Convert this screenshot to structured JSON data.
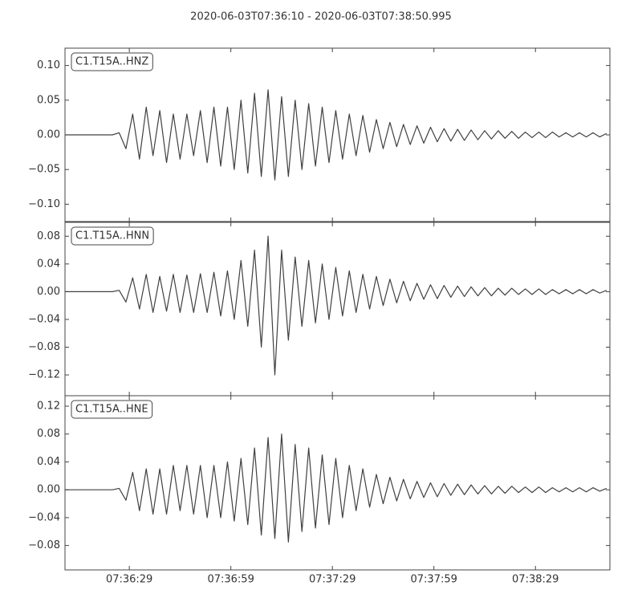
{
  "chart_data": [
    {
      "type": "line",
      "title": "2020-06-03T07:36:10  -  2020-06-03T07:38:50.995",
      "x": [
        0,
        2,
        4,
        6,
        8,
        10,
        12,
        14,
        16,
        18,
        20,
        22,
        24,
        26,
        28,
        30,
        32,
        34,
        36,
        38,
        40,
        42,
        44,
        46,
        48,
        50,
        52,
        54,
        56,
        58,
        60,
        62,
        64,
        66,
        68,
        70,
        72,
        74,
        76,
        78,
        80,
        82,
        84,
        86,
        88,
        90,
        92,
        94,
        96,
        98,
        100,
        102,
        104,
        106,
        108,
        110,
        112,
        114,
        116,
        118,
        120,
        122,
        124,
        126,
        128,
        130,
        132,
        134,
        136,
        138,
        140,
        142,
        144,
        146,
        148,
        150,
        152,
        154,
        156,
        158,
        160
      ],
      "series": [
        {
          "name": "C1.T15A..HNZ",
          "color": "#404040",
          "values": [
            0,
            0,
            0,
            0,
            0,
            0,
            0,
            0,
            0.003,
            -0.02,
            0.03,
            -0.035,
            0.04,
            -0.03,
            0.035,
            -0.04,
            0.03,
            -0.035,
            0.03,
            -0.03,
            0.035,
            -0.04,
            0.04,
            -0.045,
            0.04,
            -0.05,
            0.05,
            -0.055,
            0.06,
            -0.06,
            0.065,
            -0.065,
            0.055,
            -0.06,
            0.05,
            -0.05,
            0.045,
            -0.045,
            0.04,
            -0.04,
            0.035,
            -0.035,
            0.03,
            -0.03,
            0.028,
            -0.025,
            0.022,
            -0.02,
            0.018,
            -0.017,
            0.015,
            -0.014,
            0.013,
            -0.012,
            0.011,
            -0.01,
            0.009,
            -0.009,
            0.008,
            -0.008,
            0.007,
            -0.007,
            0.006,
            -0.006,
            0.006,
            -0.005,
            0.005,
            -0.005,
            0.004,
            -0.004,
            0.004,
            -0.004,
            0.004,
            -0.003,
            0.003,
            -0.003,
            0.003,
            -0.003,
            0.003,
            -0.003,
            0.002
          ]
        }
      ],
      "xlim": [
        0,
        160.995
      ],
      "ylim": [
        -0.125,
        0.125
      ],
      "yticks": [
        {
          "value": 0.1,
          "label": "0.10"
        },
        {
          "value": 0.05,
          "label": "0.05"
        },
        {
          "value": 0,
          "label": "0.00"
        },
        {
          "value": -0.05,
          "label": "−0.05"
        },
        {
          "value": -0.1,
          "label": "−0.10"
        }
      ]
    },
    {
      "type": "line",
      "x": [
        0,
        2,
        4,
        6,
        8,
        10,
        12,
        14,
        16,
        18,
        20,
        22,
        24,
        26,
        28,
        30,
        32,
        34,
        36,
        38,
        40,
        42,
        44,
        46,
        48,
        50,
        52,
        54,
        56,
        58,
        60,
        62,
        64,
        66,
        68,
        70,
        72,
        74,
        76,
        78,
        80,
        82,
        84,
        86,
        88,
        90,
        92,
        94,
        96,
        98,
        100,
        102,
        104,
        106,
        108,
        110,
        112,
        114,
        116,
        118,
        120,
        122,
        124,
        126,
        128,
        130,
        132,
        134,
        136,
        138,
        140,
        142,
        144,
        146,
        148,
        150,
        152,
        154,
        156,
        158,
        160
      ],
      "series": [
        {
          "name": "C1.T15A..HNN",
          "color": "#404040",
          "values": [
            0,
            0,
            0,
            0,
            0,
            0,
            0,
            0,
            0.002,
            -0.015,
            0.02,
            -0.025,
            0.025,
            -0.03,
            0.022,
            -0.028,
            0.025,
            -0.03,
            0.024,
            -0.03,
            0.026,
            -0.03,
            0.028,
            -0.035,
            0.03,
            -0.04,
            0.045,
            -0.05,
            0.06,
            -0.08,
            0.08,
            -0.12,
            0.06,
            -0.07,
            0.05,
            -0.05,
            0.045,
            -0.045,
            0.04,
            -0.04,
            0.035,
            -0.035,
            0.03,
            -0.03,
            0.025,
            -0.025,
            0.022,
            -0.02,
            0.018,
            -0.016,
            0.015,
            -0.013,
            0.012,
            -0.011,
            0.01,
            -0.01,
            0.009,
            -0.008,
            0.008,
            -0.007,
            0.007,
            -0.006,
            0.006,
            -0.006,
            0.005,
            -0.005,
            0.005,
            -0.004,
            0.004,
            -0.004,
            0.004,
            -0.004,
            0.003,
            -0.003,
            0.003,
            -0.003,
            0.003,
            -0.003,
            0.003,
            -0.002,
            0.002
          ]
        }
      ],
      "xlim": [
        0,
        160.995
      ],
      "ylim": [
        -0.15,
        0.1
      ],
      "yticks": [
        {
          "value": 0.08,
          "label": "0.08"
        },
        {
          "value": 0.04,
          "label": "0.04"
        },
        {
          "value": 0,
          "label": "0.00"
        },
        {
          "value": -0.04,
          "label": "−0.04"
        },
        {
          "value": -0.08,
          "label": "−0.08"
        },
        {
          "value": -0.12,
          "label": "−0.12"
        }
      ]
    },
    {
      "type": "line",
      "x": [
        0,
        2,
        4,
        6,
        8,
        10,
        12,
        14,
        16,
        18,
        20,
        22,
        24,
        26,
        28,
        30,
        32,
        34,
        36,
        38,
        40,
        42,
        44,
        46,
        48,
        50,
        52,
        54,
        56,
        58,
        60,
        62,
        64,
        66,
        68,
        70,
        72,
        74,
        76,
        78,
        80,
        82,
        84,
        86,
        88,
        90,
        92,
        94,
        96,
        98,
        100,
        102,
        104,
        106,
        108,
        110,
        112,
        114,
        116,
        118,
        120,
        122,
        124,
        126,
        128,
        130,
        132,
        134,
        136,
        138,
        140,
        142,
        144,
        146,
        148,
        150,
        152,
        154,
        156,
        158,
        160
      ],
      "series": [
        {
          "name": "C1.T15A..HNE",
          "color": "#404040",
          "values": [
            0,
            0,
            0,
            0,
            0,
            0,
            0,
            0,
            0.002,
            -0.015,
            0.025,
            -0.03,
            0.03,
            -0.035,
            0.03,
            -0.035,
            0.035,
            -0.03,
            0.035,
            -0.035,
            0.035,
            -0.04,
            0.035,
            -0.04,
            0.04,
            -0.045,
            0.045,
            -0.05,
            0.06,
            -0.065,
            0.075,
            -0.07,
            0.08,
            -0.075,
            0.065,
            -0.06,
            0.06,
            -0.055,
            0.05,
            -0.05,
            0.045,
            -0.04,
            0.035,
            -0.03,
            0.03,
            -0.025,
            0.022,
            -0.02,
            0.018,
            -0.016,
            0.015,
            -0.013,
            0.012,
            -0.011,
            0.01,
            -0.01,
            0.009,
            -0.008,
            0.008,
            -0.007,
            0.007,
            -0.006,
            0.006,
            -0.006,
            0.005,
            -0.005,
            0.005,
            -0.004,
            0.004,
            -0.004,
            0.004,
            -0.004,
            0.003,
            -0.003,
            0.003,
            -0.003,
            0.003,
            -0.003,
            0.003,
            -0.002,
            0.002
          ]
        }
      ],
      "xlim": [
        0,
        160.995
      ],
      "ylim": [
        -0.115,
        0.135
      ],
      "yticks": [
        {
          "value": 0.12,
          "label": "0.12"
        },
        {
          "value": 0.08,
          "label": "0.08"
        },
        {
          "value": 0.04,
          "label": "0.04"
        },
        {
          "value": 0,
          "label": "0.00"
        },
        {
          "value": -0.04,
          "label": "−0.04"
        },
        {
          "value": -0.08,
          "label": "−0.08"
        }
      ],
      "xticks": [
        {
          "value": 19,
          "label": "07:36:29"
        },
        {
          "value": 49,
          "label": "07:36:59"
        },
        {
          "value": 79,
          "label": "07:37:29"
        },
        {
          "value": 109,
          "label": "07:37:59"
        },
        {
          "value": 139,
          "label": "07:38:29"
        }
      ]
    }
  ]
}
